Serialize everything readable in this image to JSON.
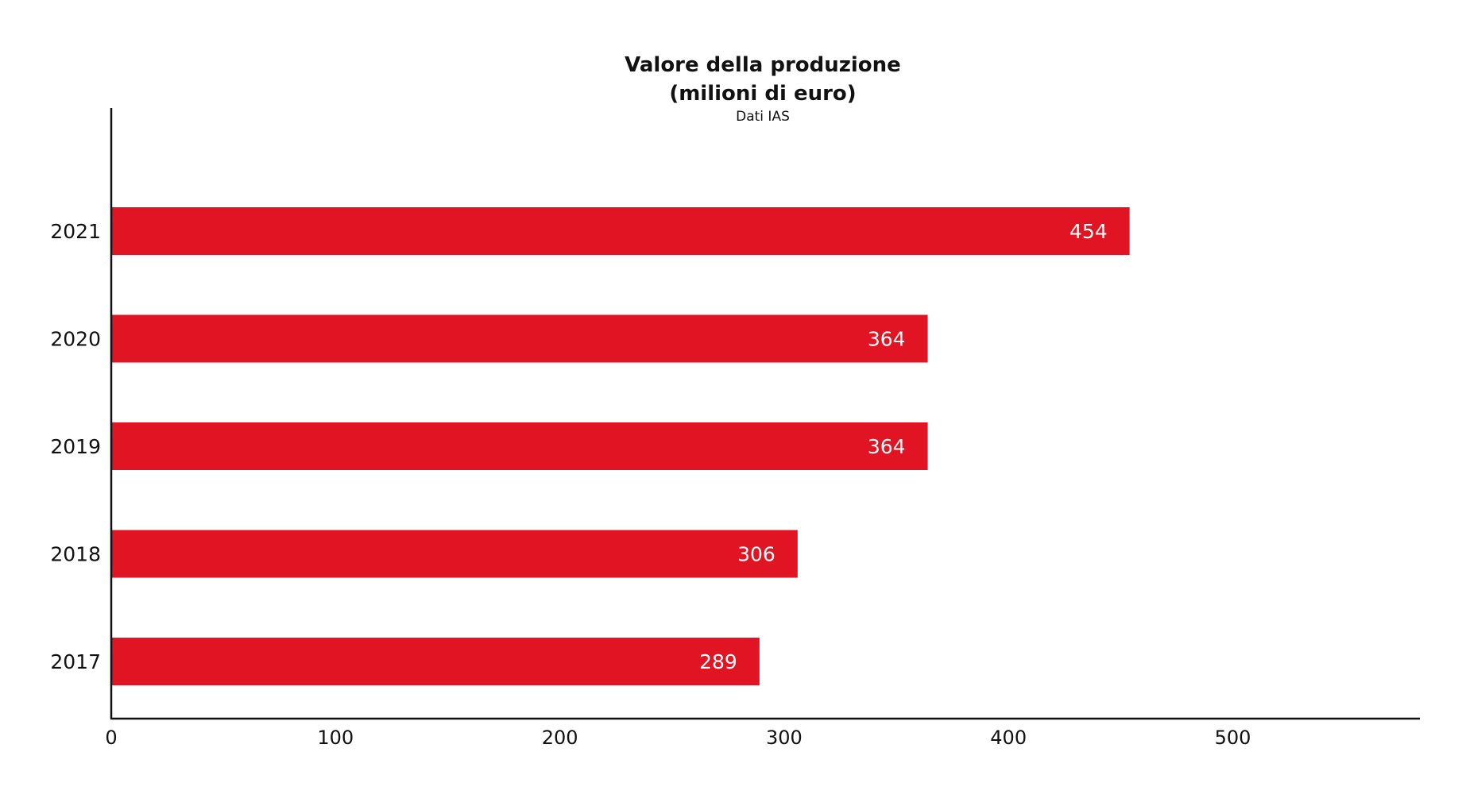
{
  "chart_data": {
    "type": "bar",
    "orientation": "horizontal",
    "title": "Valore della produzione",
    "title_line2": "(milioni di euro)",
    "subtitle": "Dati IAS",
    "categories": [
      "2021",
      "2020",
      "2019",
      "2018",
      "2017"
    ],
    "values": [
      454,
      364,
      364,
      306,
      289
    ],
    "data_labels": [
      "454",
      "364",
      "364",
      "306",
      "289"
    ],
    "xlabel": "",
    "ylabel": "",
    "xlim": [
      0,
      580
    ],
    "xticks": [
      0,
      100,
      200,
      300,
      400,
      500
    ],
    "xtick_labels": [
      "0",
      "100",
      "200",
      "300",
      "400",
      "500"
    ],
    "grid": false,
    "legend": "none",
    "colors": {
      "bar": "#E01422",
      "axis": "#111111",
      "data_label": "#ffffff"
    }
  }
}
